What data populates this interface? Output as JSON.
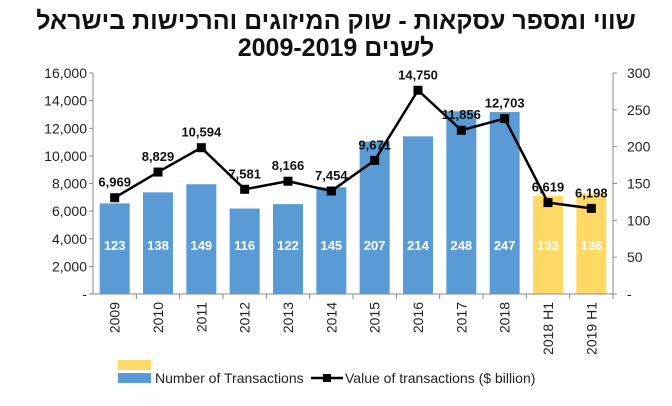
{
  "chart_data": {
    "type": "bar+line",
    "title_line1": "שווי ומספר עסקאות -  שוק המיזוגים והרכישות בישראל",
    "title_line2": "לשנים 2009-2019",
    "categories": [
      "2009",
      "2010",
      "2011",
      "2012",
      "2013",
      "2014",
      "2015",
      "2016",
      "2017",
      "2018",
      "2018 H1",
      "2019 H1"
    ],
    "bars": {
      "name": "Number of Transactions",
      "axis": "right",
      "values": [
        123,
        138,
        149,
        116,
        122,
        145,
        207,
        214,
        248,
        247,
        133,
        136
      ],
      "colors": [
        "#5b9bd5",
        "#5b9bd5",
        "#5b9bd5",
        "#5b9bd5",
        "#5b9bd5",
        "#5b9bd5",
        "#5b9bd5",
        "#5b9bd5",
        "#5b9bd5",
        "#5b9bd5",
        "#ffd966",
        "#ffd966"
      ],
      "labels": [
        "123",
        "138",
        "149",
        "116",
        "122",
        "145",
        "207",
        "214",
        "248",
        "247",
        "133",
        "136"
      ]
    },
    "line": {
      "name": "Value of transactions ($ billion)",
      "axis": "left",
      "values": [
        6969,
        8829,
        10594,
        7581,
        8166,
        7454,
        9671,
        14750,
        11856,
        12703,
        6619,
        6198
      ],
      "labels": [
        "6,969",
        "8,829",
        "10,594",
        "7,581",
        "8,166",
        "7,454",
        "9,671",
        "14,750",
        "11,856",
        "12,703",
        "6,619",
        "6,198"
      ],
      "color": "#000000"
    },
    "left_axis": {
      "ylim": [
        0,
        16000
      ],
      "ticks": [
        "-",
        "2,000",
        "4,000",
        "6,000",
        "8,000",
        "10,000",
        "12,000",
        "14,000",
        "16,000"
      ]
    },
    "right_axis": {
      "ylim": [
        0,
        300
      ],
      "ticks": [
        "-",
        "50",
        "100",
        "150",
        "200",
        "250",
        "300"
      ]
    },
    "legend": {
      "placement": "bottom",
      "bar_colors": [
        "#ffd966",
        "#5b9bd5"
      ]
    }
  }
}
